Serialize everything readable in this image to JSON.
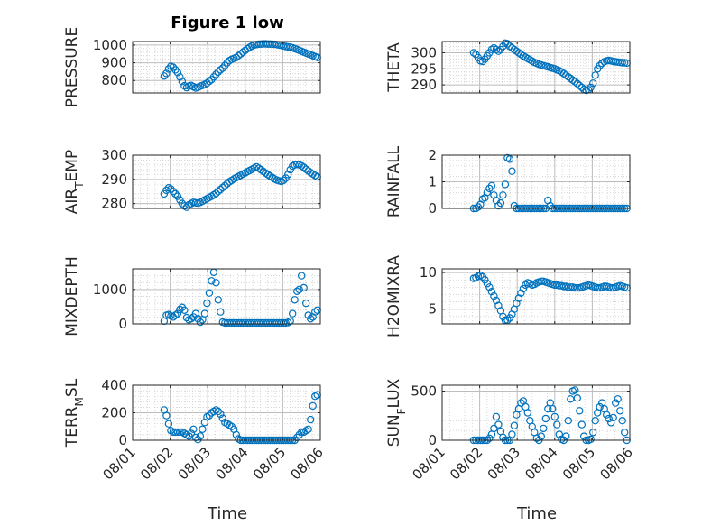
{
  "figure": {
    "title": "Figure 1 low",
    "x_axis_label": "Time",
    "x_ticks": [
      "08/01",
      "08/02",
      "08/03",
      "08/04",
      "08/05",
      "08/06"
    ]
  },
  "colors": {
    "marker": "#0072BD",
    "axis": "#262626",
    "grid": "#c8c8c8"
  },
  "chart_data": [
    {
      "type": "scatter",
      "ylabel": "PRESSURE",
      "ylim": [
        730,
        1020
      ],
      "yticks": [
        800,
        900,
        1000
      ],
      "grid": true,
      "marker": "open-circle",
      "x": [
        1.84,
        1.9,
        1.96,
        2.02,
        2.08,
        2.14,
        2.2,
        2.26,
        2.32,
        2.38,
        2.44,
        2.5,
        2.56,
        2.62,
        2.68,
        2.74,
        2.8,
        2.86,
        2.92,
        2.98,
        3.04,
        3.1,
        3.16,
        3.22,
        3.28,
        3.34,
        3.4,
        3.46,
        3.52,
        3.58,
        3.64,
        3.7,
        3.76,
        3.82,
        3.88,
        3.94,
        4.0,
        4.06,
        4.12,
        4.18,
        4.24,
        4.3,
        4.36,
        4.42,
        4.48,
        4.54,
        4.6,
        4.66,
        4.72,
        4.78,
        4.84,
        4.9,
        4.96,
        5.02,
        5.08,
        5.14,
        5.2,
        5.26,
        5.32,
        5.38,
        5.44,
        5.5,
        5.56,
        5.62,
        5.68,
        5.74,
        5.8,
        5.86,
        5.92
      ],
      "y": [
        825,
        840,
        865,
        880,
        875,
        860,
        845,
        820,
        795,
        770,
        760,
        768,
        772,
        765,
        758,
        762,
        768,
        772,
        778,
        785,
        795,
        805,
        820,
        835,
        848,
        860,
        870,
        885,
        900,
        912,
        920,
        925,
        930,
        940,
        950,
        960,
        970,
        980,
        988,
        995,
        1000,
        1003,
        1005,
        1006,
        1007,
        1007,
        1006,
        1006,
        1005,
        1004,
        1003,
        1000,
        998,
        995,
        992,
        990,
        988,
        985,
        980,
        975,
        970,
        965,
        960,
        955,
        950,
        945,
        940,
        935,
        930
      ]
    },
    {
      "type": "scatter",
      "ylabel": "THETA",
      "ylim": [
        287.5,
        303.5
      ],
      "yticks": [
        290,
        295,
        300
      ],
      "grid": true,
      "marker": "open-circle",
      "x": [
        1.84,
        1.9,
        1.96,
        2.02,
        2.08,
        2.14,
        2.2,
        2.26,
        2.32,
        2.38,
        2.44,
        2.5,
        2.56,
        2.62,
        2.68,
        2.74,
        2.8,
        2.86,
        2.92,
        2.98,
        3.04,
        3.1,
        3.16,
        3.22,
        3.28,
        3.34,
        3.4,
        3.46,
        3.52,
        3.58,
        3.64,
        3.7,
        3.76,
        3.82,
        3.88,
        3.94,
        4.0,
        4.06,
        4.12,
        4.18,
        4.24,
        4.3,
        4.36,
        4.42,
        4.48,
        4.54,
        4.6,
        4.66,
        4.72,
        4.78,
        4.84,
        4.9,
        4.96,
        5.02,
        5.08,
        5.14,
        5.2,
        5.26,
        5.32,
        5.38,
        5.44,
        5.5,
        5.56,
        5.62,
        5.68,
        5.74,
        5.8,
        5.86,
        5.92
      ],
      "y": [
        300,
        299.5,
        298.5,
        297.5,
        297.3,
        298,
        299,
        300,
        301,
        301.5,
        301,
        300.5,
        301,
        302,
        303,
        302.8,
        302,
        301.5,
        301,
        300.5,
        300,
        299.5,
        299,
        298.6,
        298.2,
        297.8,
        297.4,
        297,
        296.7,
        296.4,
        296.2,
        296,
        295.8,
        295.6,
        295.4,
        295.2,
        295,
        294.7,
        294.4,
        294,
        293.5,
        293,
        292.5,
        292,
        291.5,
        291,
        290.4,
        289.8,
        289.2,
        288.6,
        288.3,
        288.5,
        289.2,
        290.5,
        293,
        295,
        296,
        296.7,
        297.2,
        297.5,
        297.6,
        297.5,
        297.3,
        297.2,
        297.1,
        297,
        296.9,
        296.9,
        296.8
      ]
    },
    {
      "type": "scatter",
      "ylabel": "AIR_TEMP",
      "ylim": [
        278,
        300
      ],
      "yticks": [
        280,
        290,
        300
      ],
      "grid": true,
      "marker": "open-circle",
      "x": [
        1.84,
        1.9,
        1.96,
        2.02,
        2.08,
        2.14,
        2.2,
        2.26,
        2.32,
        2.38,
        2.44,
        2.5,
        2.56,
        2.62,
        2.68,
        2.74,
        2.8,
        2.86,
        2.92,
        2.98,
        3.04,
        3.1,
        3.16,
        3.22,
        3.28,
        3.34,
        3.4,
        3.46,
        3.52,
        3.58,
        3.64,
        3.7,
        3.76,
        3.82,
        3.88,
        3.94,
        4.0,
        4.06,
        4.12,
        4.18,
        4.24,
        4.3,
        4.36,
        4.42,
        4.48,
        4.54,
        4.6,
        4.66,
        4.72,
        4.78,
        4.84,
        4.9,
        4.96,
        5.02,
        5.08,
        5.14,
        5.2,
        5.26,
        5.32,
        5.38,
        5.44,
        5.5,
        5.56,
        5.62,
        5.68,
        5.74,
        5.8,
        5.86,
        5.92
      ],
      "y": [
        284,
        285.5,
        286.5,
        286,
        285,
        284,
        283,
        281.5,
        280,
        279,
        278.5,
        279.5,
        280,
        280.5,
        280.3,
        280.2,
        280.5,
        281,
        281.5,
        282,
        282.5,
        283,
        283.6,
        284.2,
        285,
        285.8,
        286.6,
        287.4,
        288.2,
        289,
        289.6,
        290.2,
        290.7,
        291.2,
        291.7,
        292.2,
        292.7,
        293.2,
        293.7,
        294.2,
        294.7,
        295.2,
        294.6,
        294,
        293.3,
        292.6,
        292,
        291.4,
        290.8,
        290.2,
        289.7,
        289.4,
        289.2,
        289.6,
        290.5,
        292,
        294,
        295.5,
        296,
        296.2,
        296,
        295.6,
        295,
        294.2,
        293.5,
        292.8,
        292.2,
        291.6,
        291
      ]
    },
    {
      "type": "scatter",
      "ylabel": "RAINFALL",
      "ylim": [
        0,
        2
      ],
      "yticks": [
        0,
        1,
        2
      ],
      "grid": true,
      "marker": "open-circle",
      "x": [
        1.84,
        1.9,
        1.96,
        2.02,
        2.08,
        2.14,
        2.2,
        2.26,
        2.32,
        2.38,
        2.44,
        2.5,
        2.56,
        2.62,
        2.68,
        2.74,
        2.8,
        2.86,
        2.92,
        2.98,
        3.04,
        3.1,
        3.16,
        3.22,
        3.28,
        3.34,
        3.4,
        3.46,
        3.52,
        3.58,
        3.64,
        3.7,
        3.76,
        3.82,
        3.88,
        3.94,
        4.0,
        4.06,
        4.12,
        4.18,
        4.24,
        4.3,
        4.36,
        4.42,
        4.48,
        4.54,
        4.6,
        4.66,
        4.72,
        4.78,
        4.84,
        4.9,
        4.96,
        5.02,
        5.08,
        5.14,
        5.2,
        5.26,
        5.32,
        5.38,
        5.44,
        5.5,
        5.56,
        5.62,
        5.68,
        5.74,
        5.8,
        5.86,
        5.92
      ],
      "y": [
        0,
        0,
        0.05,
        0.15,
        0.35,
        0.4,
        0.6,
        0.75,
        0.85,
        0.5,
        0.3,
        0.1,
        0.2,
        0.5,
        0.9,
        1.9,
        1.85,
        1.4,
        0.1,
        0,
        0,
        0,
        0,
        0,
        0,
        0,
        0,
        0,
        0,
        0,
        0,
        0,
        0,
        0.3,
        0.1,
        0,
        0,
        0,
        0,
        0,
        0,
        0,
        0,
        0,
        0,
        0,
        0,
        0,
        0,
        0,
        0,
        0,
        0,
        0,
        0,
        0,
        0,
        0,
        0,
        0,
        0,
        0,
        0,
        0,
        0,
        0,
        0,
        0,
        0
      ]
    },
    {
      "type": "scatter",
      "ylabel": "MIXDEPTH",
      "ylim": [
        0,
        1600
      ],
      "yticks": [
        0,
        1000
      ],
      "grid": true,
      "marker": "open-circle",
      "x": [
        1.84,
        1.9,
        1.96,
        2.02,
        2.08,
        2.14,
        2.2,
        2.26,
        2.32,
        2.38,
        2.44,
        2.5,
        2.56,
        2.62,
        2.68,
        2.74,
        2.8,
        2.86,
        2.92,
        2.98,
        3.04,
        3.1,
        3.16,
        3.22,
        3.28,
        3.34,
        3.4,
        3.46,
        3.52,
        3.58,
        3.64,
        3.7,
        3.76,
        3.82,
        3.88,
        3.94,
        4.0,
        4.06,
        4.12,
        4.18,
        4.24,
        4.3,
        4.36,
        4.42,
        4.48,
        4.54,
        4.6,
        4.66,
        4.72,
        4.78,
        4.84,
        4.9,
        4.96,
        5.02,
        5.08,
        5.14,
        5.2,
        5.26,
        5.32,
        5.38,
        5.44,
        5.5,
        5.56,
        5.62,
        5.68,
        5.74,
        5.8,
        5.86,
        5.92
      ],
      "y": [
        80,
        250,
        270,
        230,
        200,
        250,
        300,
        420,
        480,
        400,
        180,
        120,
        150,
        200,
        300,
        150,
        50,
        120,
        300,
        600,
        900,
        1250,
        1500,
        1200,
        700,
        350,
        50,
        30,
        30,
        30,
        30,
        30,
        30,
        30,
        30,
        30,
        30,
        30,
        30,
        30,
        30,
        30,
        30,
        30,
        30,
        30,
        30,
        30,
        30,
        30,
        30,
        30,
        30,
        30,
        30,
        40,
        80,
        300,
        700,
        950,
        1000,
        1400,
        1050,
        600,
        250,
        150,
        200,
        350,
        400
      ]
    },
    {
      "type": "scatter",
      "ylabel": "H2OMIXRA",
      "ylim": [
        3,
        10.5
      ],
      "yticks": [
        5,
        10
      ],
      "grid": true,
      "marker": "open-circle",
      "x": [
        1.84,
        1.9,
        1.96,
        2.02,
        2.08,
        2.14,
        2.2,
        2.26,
        2.32,
        2.38,
        2.44,
        2.5,
        2.56,
        2.62,
        2.68,
        2.74,
        2.8,
        2.86,
        2.92,
        2.98,
        3.04,
        3.1,
        3.16,
        3.22,
        3.28,
        3.34,
        3.4,
        3.46,
        3.52,
        3.58,
        3.64,
        3.7,
        3.76,
        3.82,
        3.88,
        3.94,
        4.0,
        4.06,
        4.12,
        4.18,
        4.24,
        4.3,
        4.36,
        4.42,
        4.48,
        4.54,
        4.6,
        4.66,
        4.72,
        4.78,
        4.84,
        4.9,
        4.96,
        5.02,
        5.08,
        5.14,
        5.2,
        5.26,
        5.32,
        5.38,
        5.44,
        5.5,
        5.56,
        5.62,
        5.68,
        5.74,
        5.8,
        5.86,
        5.92
      ],
      "y": [
        9.2,
        9.3,
        9.5,
        9.6,
        9.4,
        9.0,
        8.5,
        8.0,
        7.4,
        6.8,
        6.2,
        5.5,
        4.8,
        4.0,
        3.5,
        3.5,
        3.8,
        4.3,
        5.0,
        5.8,
        6.5,
        7.2,
        7.8,
        8.3,
        8.6,
        8.5,
        8.3,
        8.4,
        8.6,
        8.7,
        8.8,
        8.8,
        8.7,
        8.6,
        8.5,
        8.4,
        8.3,
        8.3,
        8.2,
        8.2,
        8.1,
        8.1,
        8.0,
        8.0,
        8.0,
        7.9,
        7.9,
        7.9,
        8.0,
        8.1,
        8.2,
        8.3,
        8.2,
        8.1,
        8.0,
        7.9,
        7.9,
        8.0,
        8.1,
        8.1,
        8.0,
        7.9,
        7.9,
        8.0,
        8.1,
        8.2,
        8.1,
        8.0,
        7.9
      ]
    },
    {
      "type": "scatter",
      "ylabel": "TERR_MSL",
      "ylim": [
        0,
        400
      ],
      "yticks": [
        0,
        200,
        400
      ],
      "grid": true,
      "marker": "open-circle",
      "x": [
        1.84,
        1.9,
        1.96,
        2.02,
        2.08,
        2.14,
        2.2,
        2.26,
        2.32,
        2.38,
        2.44,
        2.5,
        2.56,
        2.62,
        2.68,
        2.74,
        2.8,
        2.86,
        2.92,
        2.98,
        3.04,
        3.1,
        3.16,
        3.22,
        3.28,
        3.34,
        3.4,
        3.46,
        3.52,
        3.58,
        3.64,
        3.7,
        3.76,
        3.82,
        3.88,
        3.94,
        4.0,
        4.06,
        4.12,
        4.18,
        4.24,
        4.3,
        4.36,
        4.42,
        4.48,
        4.54,
        4.6,
        4.66,
        4.72,
        4.78,
        4.84,
        4.9,
        4.96,
        5.02,
        5.08,
        5.14,
        5.2,
        5.26,
        5.32,
        5.38,
        5.44,
        5.5,
        5.56,
        5.62,
        5.68,
        5.74,
        5.8,
        5.86,
        5.92
      ],
      "y": [
        220,
        180,
        120,
        70,
        60,
        60,
        60,
        60,
        60,
        50,
        40,
        30,
        50,
        80,
        20,
        5,
        30,
        80,
        130,
        170,
        180,
        200,
        210,
        220,
        210,
        190,
        160,
        130,
        120,
        110,
        100,
        80,
        40,
        10,
        0,
        0,
        0,
        0,
        0,
        0,
        0,
        0,
        0,
        0,
        0,
        0,
        0,
        0,
        0,
        0,
        0,
        0,
        0,
        0,
        0,
        0,
        0,
        0,
        0,
        20,
        40,
        60,
        60,
        70,
        80,
        150,
        250,
        320,
        330
      ]
    },
    {
      "type": "scatter",
      "ylabel": "SUN_FLUX",
      "ylim": [
        0,
        560
      ],
      "yticks": [
        0,
        500
      ],
      "grid": true,
      "marker": "open-circle",
      "x": [
        1.84,
        1.9,
        1.96,
        2.02,
        2.08,
        2.14,
        2.2,
        2.26,
        2.32,
        2.38,
        2.44,
        2.5,
        2.56,
        2.62,
        2.68,
        2.74,
        2.8,
        2.86,
        2.92,
        2.98,
        3.04,
        3.1,
        3.16,
        3.22,
        3.28,
        3.34,
        3.4,
        3.46,
        3.52,
        3.58,
        3.64,
        3.7,
        3.76,
        3.82,
        3.88,
        3.94,
        4.0,
        4.06,
        4.12,
        4.18,
        4.24,
        4.3,
        4.36,
        4.42,
        4.48,
        4.54,
        4.6,
        4.66,
        4.72,
        4.78,
        4.84,
        4.9,
        4.96,
        5.02,
        5.08,
        5.14,
        5.2,
        5.26,
        5.32,
        5.38,
        5.44,
        5.5,
        5.56,
        5.62,
        5.68,
        5.74,
        5.8,
        5.86,
        5.92
      ],
      "y": [
        0,
        0,
        0,
        0,
        0,
        0,
        0,
        20,
        60,
        120,
        240,
        160,
        90,
        30,
        0,
        0,
        0,
        60,
        150,
        260,
        320,
        380,
        400,
        340,
        280,
        200,
        140,
        80,
        20,
        0,
        40,
        120,
        220,
        320,
        380,
        320,
        240,
        160,
        60,
        10,
        0,
        40,
        200,
        420,
        500,
        510,
        430,
        300,
        160,
        40,
        0,
        0,
        10,
        80,
        200,
        280,
        340,
        380,
        320,
        260,
        220,
        180,
        230,
        380,
        420,
        300,
        200,
        80,
        0
      ]
    }
  ]
}
